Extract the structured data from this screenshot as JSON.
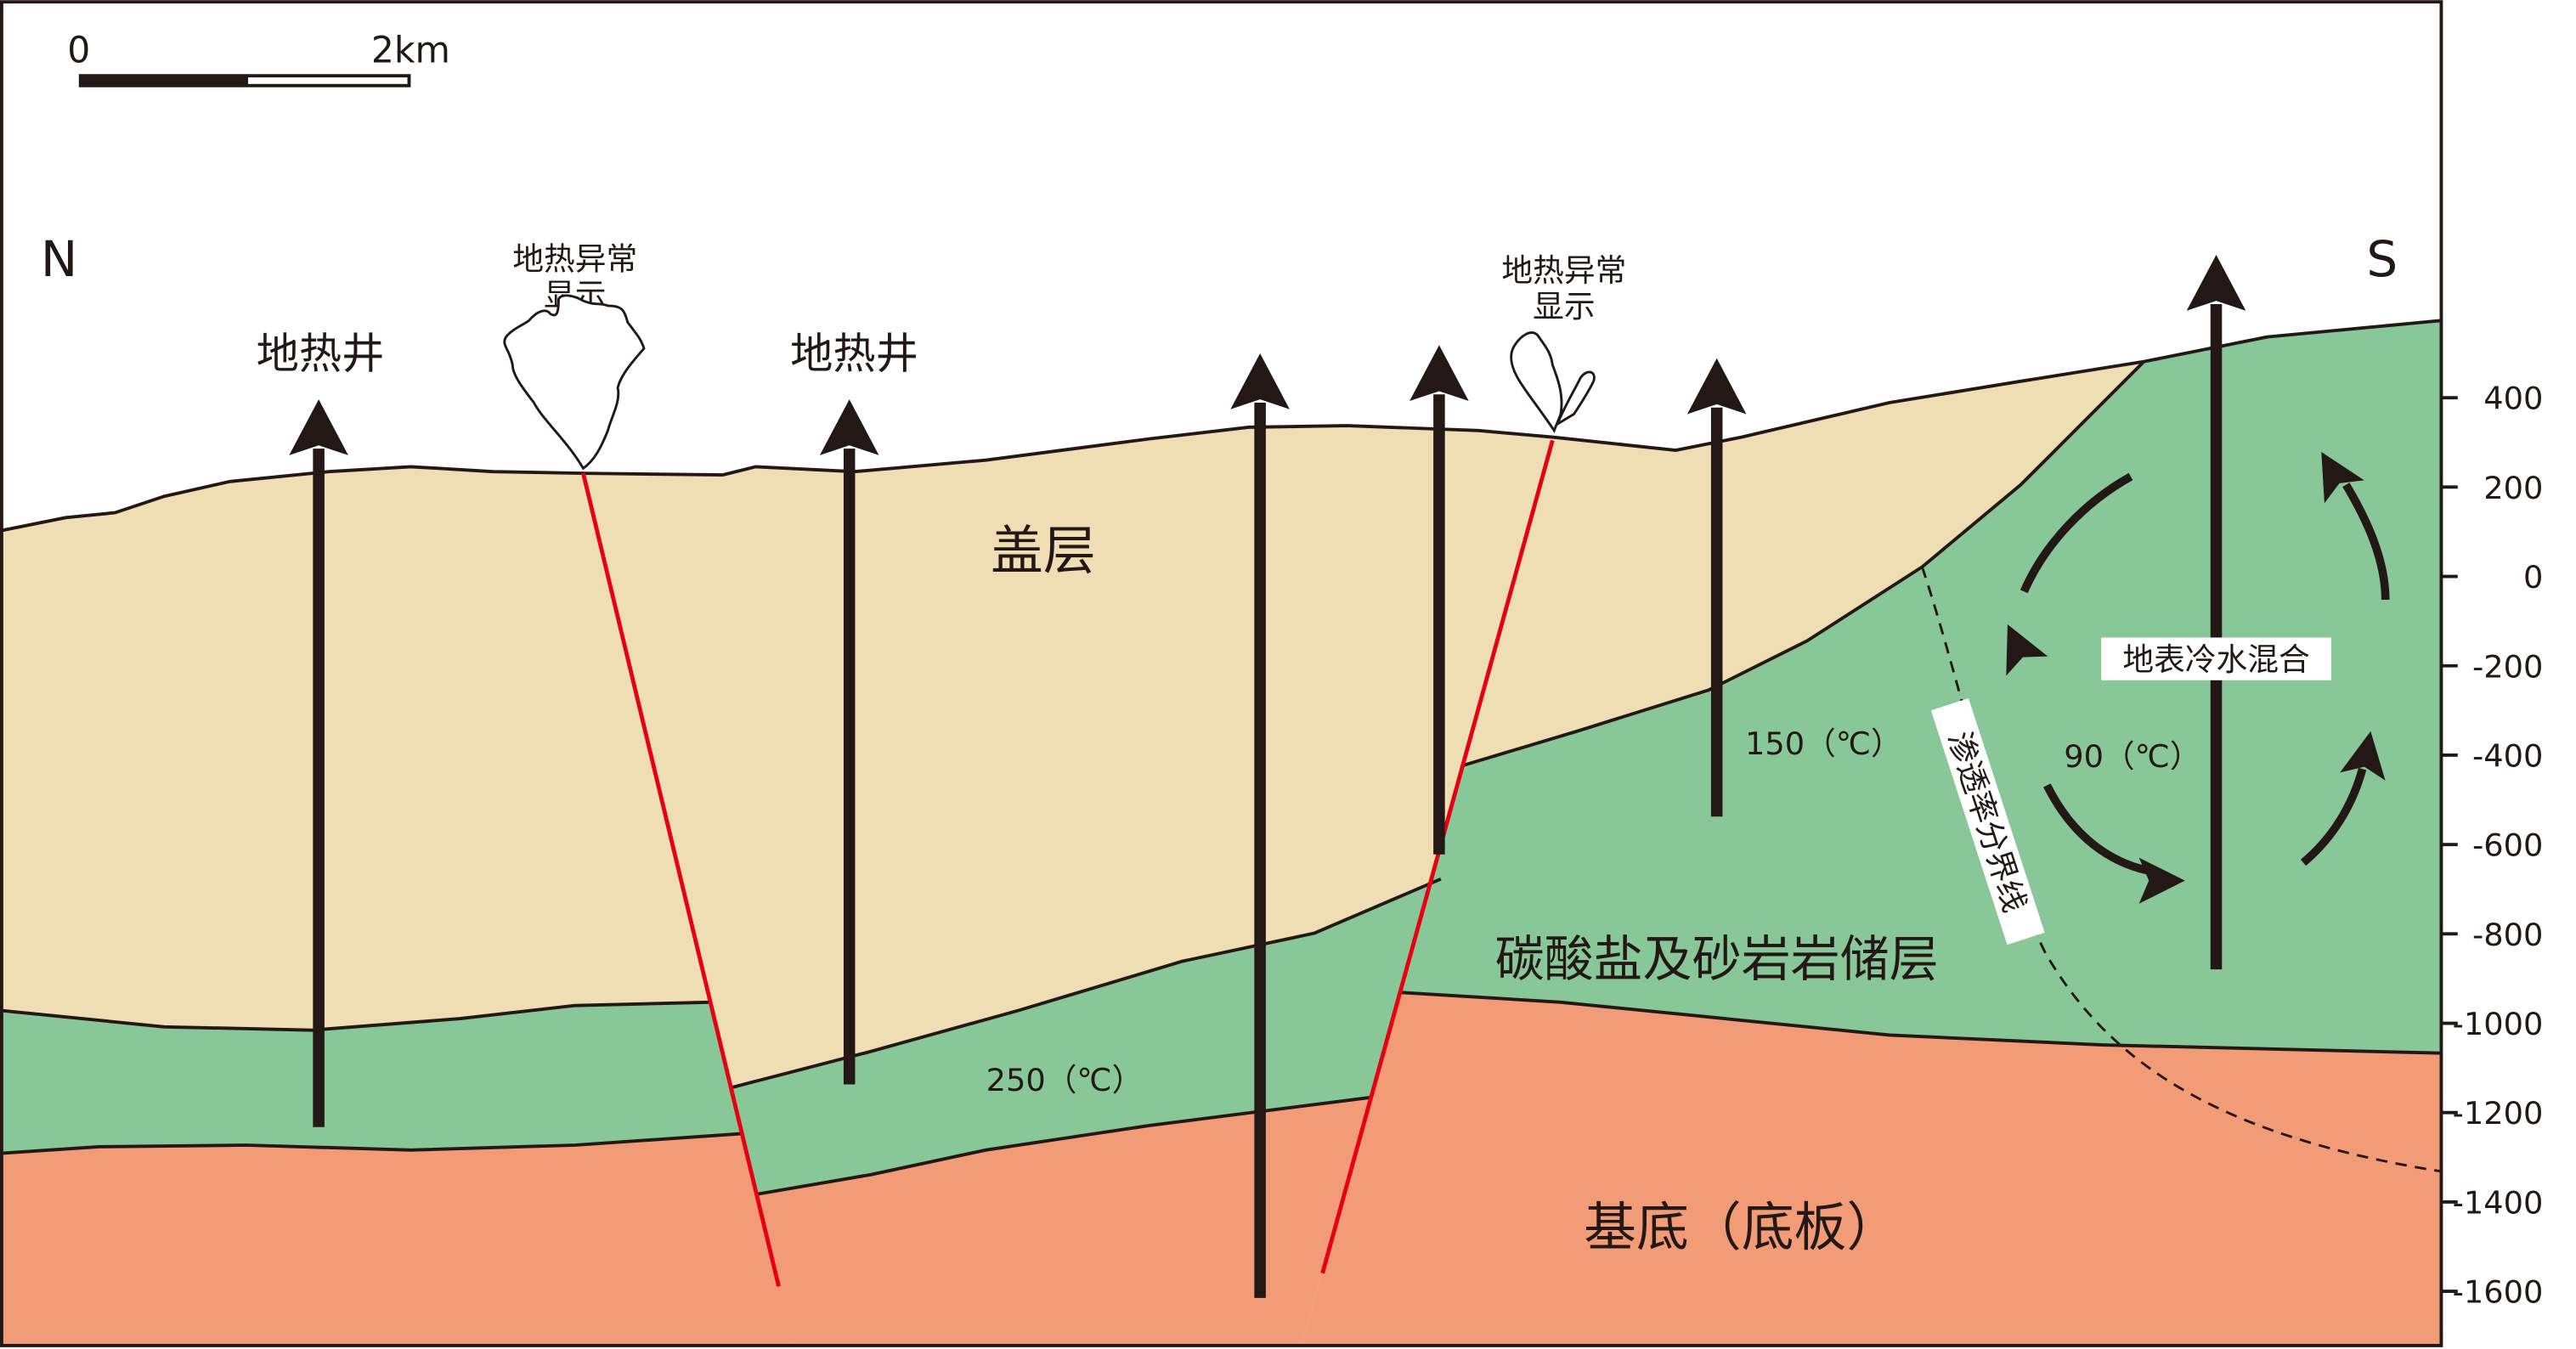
{
  "scale_bar": {
    "start_label": "0",
    "end_label": "2km"
  },
  "direction": {
    "left": "N",
    "right": "S"
  },
  "labels": {
    "well_1": "地热井",
    "well_2": "地热井",
    "anomaly_1_line1": "地热异常",
    "anomaly_1_line2": "显示",
    "anomaly_2_line1": "地热异常",
    "anomaly_2_line2": "显示",
    "cap_layer": "盖层",
    "reservoir_layer": "碳酸盐及砂岩岩储层",
    "basement": "基底（底板）",
    "temp_250": "250（℃）",
    "temp_150": "150（℃）",
    "temp_90": "90（℃）",
    "cold_water_mixing": "地表冷水混合",
    "permeability_boundary": "渗透率分界线"
  },
  "depth_axis": {
    "ticks": [
      "400",
      "200",
      "0",
      "-200",
      "-400",
      "-600",
      "-800",
      "-1000",
      "-1200",
      "-1400",
      "-1600"
    ]
  },
  "colors": {
    "cap": "#efdeb4",
    "reservoir": "#88c898",
    "basement": "#f29b77",
    "fault": "#e60012",
    "ink": "#231815"
  }
}
